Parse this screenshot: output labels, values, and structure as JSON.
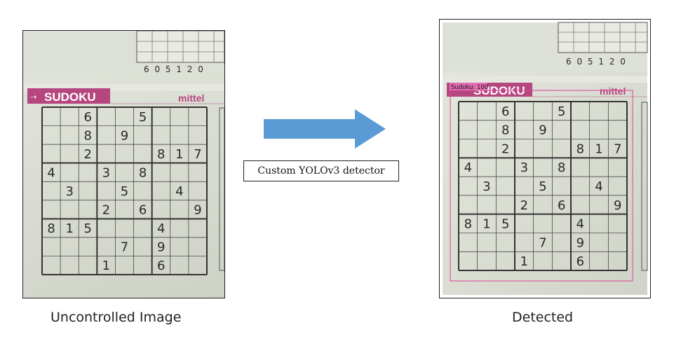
{
  "left_panel": {
    "caption": "Uncontrolled Image",
    "top_digits": "6 0 5 1 2 0",
    "banner_title": "SUDOKU",
    "brand": "mittel"
  },
  "right_panel": {
    "caption": "Detected",
    "top_digits": "6 0 5 1 2 0",
    "banner_title": "SUDOKU",
    "brand": "mittel",
    "detection_label": "Sudoku: 100"
  },
  "arrow": {
    "label": "Custom YOLOv3 detector",
    "color": "#5b9bd5"
  },
  "colors": {
    "banner": "#b5467f",
    "brand": "#b5467f",
    "bbox": "#e0409c"
  },
  "sudoku": {
    "rows": [
      [
        "",
        "",
        "6",
        "",
        "",
        "5",
        "",
        "",
        ""
      ],
      [
        "",
        "",
        "8",
        "",
        "9",
        "",
        "",
        "",
        ""
      ],
      [
        "",
        "",
        "2",
        "",
        "",
        "",
        "8",
        "1",
        "7"
      ],
      [
        "4",
        "",
        "",
        "3",
        "",
        "8",
        "",
        "",
        ""
      ],
      [
        "",
        "3",
        "",
        "",
        "5",
        "",
        "",
        "4",
        ""
      ],
      [
        "",
        "",
        "",
        "2",
        "",
        "6",
        "",
        "",
        "9"
      ],
      [
        "8",
        "1",
        "5",
        "",
        "",
        "",
        "4",
        "",
        ""
      ],
      [
        "",
        "",
        "",
        "",
        "7",
        "",
        "9",
        "",
        ""
      ],
      [
        "",
        "",
        "",
        "1",
        "",
        "",
        "6",
        "",
        ""
      ]
    ]
  }
}
